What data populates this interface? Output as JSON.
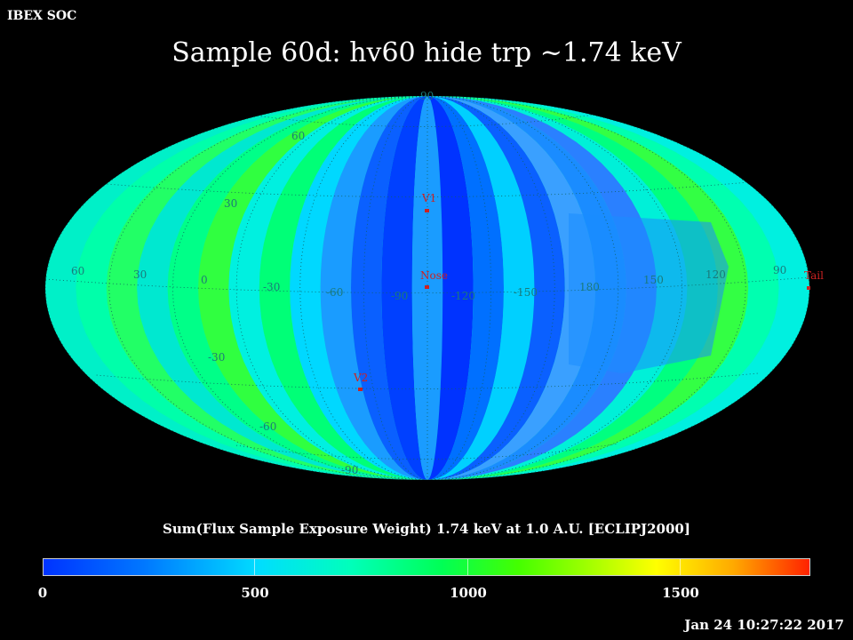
{
  "header": {
    "soc_label": "IBEX SOC",
    "title": "Sample 60d: hv60 hide trp ~1.74 keV"
  },
  "map": {
    "projection": "ellipse all-sky map",
    "longitude_labels": [
      "60",
      "30",
      "0",
      "-30",
      "-60",
      "-90",
      "-120",
      "-150",
      "180",
      "150",
      "120",
      "90"
    ],
    "latitude_labels": [
      "90",
      "60",
      "30",
      "-30",
      "-60",
      "-90"
    ],
    "markers": [
      {
        "name": "nose",
        "label": "Nose"
      },
      {
        "name": "tail",
        "label": "Tail"
      },
      {
        "name": "v1",
        "label": "V1"
      },
      {
        "name": "v2",
        "label": "V2"
      }
    ]
  },
  "colorbar": {
    "title": "Sum(Flux Sample Exposure Weight)  1.74 keV at 1.0 A.U. [ECLIPJ2000]",
    "tick_labels": [
      "0",
      "500",
      "1000",
      "1500"
    ],
    "range": [
      0,
      1800
    ]
  },
  "footer": {
    "timestamp": "Jan 24 10:27:22 2017"
  },
  "colors": {
    "background": "#000000",
    "grid_label": "#1a7a7a",
    "marker": "#cc2222"
  }
}
